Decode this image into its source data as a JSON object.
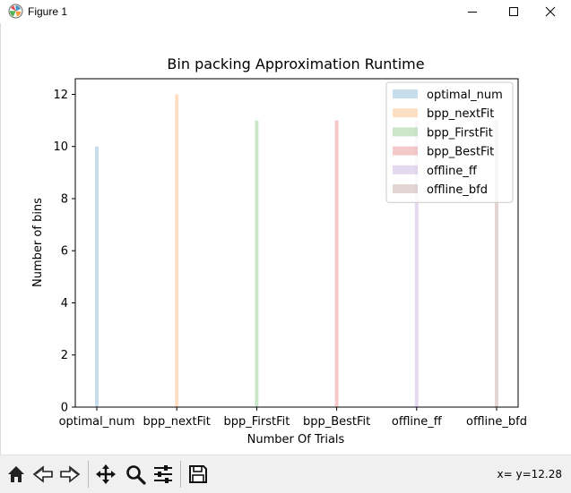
{
  "window": {
    "title": "Figure 1",
    "controls": [
      "minimize",
      "maximize",
      "close"
    ]
  },
  "toolbar": {
    "buttons": [
      {
        "name": "home-button",
        "icon": "home-icon"
      },
      {
        "name": "back-button",
        "icon": "back-arrow-icon"
      },
      {
        "name": "forward-button",
        "icon": "forward-arrow-icon"
      },
      {
        "name": "pan-button",
        "icon": "move-icon"
      },
      {
        "name": "zoom-button",
        "icon": "magnifier-icon"
      },
      {
        "name": "configure-subplots-button",
        "icon": "sliders-icon"
      },
      {
        "name": "save-button",
        "icon": "floppy-disk-icon"
      }
    ],
    "coordinates": "x= y=12.28"
  },
  "chart_data": {
    "type": "bar",
    "title": "Bin packing Approximation Runtime",
    "xlabel": "Number Of Trials",
    "ylabel": "Number of bins",
    "categories": [
      "optimal_num",
      "bpp_nextFit",
      "bpp_FirstFit",
      "bpp_BestFit",
      "offline_ff",
      "offline_bfd"
    ],
    "series": [
      {
        "name": "optimal_num",
        "values": [
          10,
          null,
          null,
          null,
          null,
          null
        ],
        "color": "#1f77b4"
      },
      {
        "name": "bpp_nextFit",
        "values": [
          null,
          12,
          null,
          null,
          null,
          null
        ],
        "color": "#ff7f0e"
      },
      {
        "name": "bpp_FirstFit",
        "values": [
          null,
          null,
          11,
          null,
          null,
          null
        ],
        "color": "#2ca02c"
      },
      {
        "name": "bpp_BestFit",
        "values": [
          null,
          null,
          null,
          11,
          null,
          null
        ],
        "color": "#d62728"
      },
      {
        "name": "offline_ff",
        "values": [
          null,
          null,
          null,
          null,
          11,
          null
        ],
        "color": "#9467bd"
      },
      {
        "name": "offline_bfd",
        "values": [
          null,
          null,
          null,
          null,
          null,
          11
        ],
        "color": "#8c564b"
      }
    ],
    "bar_alpha": 0.25,
    "yticks": [
      0,
      2,
      4,
      6,
      8,
      10,
      12
    ],
    "ylim": [
      0,
      12.6
    ],
    "grid": false,
    "legend": "top-right"
  }
}
